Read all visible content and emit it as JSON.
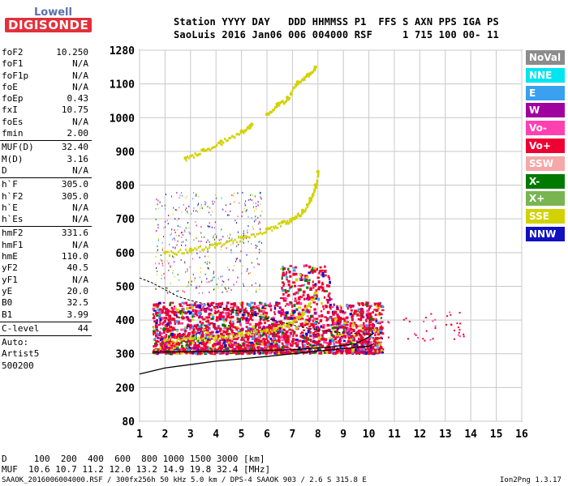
{
  "logo": {
    "line1": "Lowell",
    "line2": "DIGISONDE"
  },
  "header": {
    "line1": "Station YYYY DAY   DDD HHMMSS P1  FFS S AXN PPS IGA PS",
    "line2": "SaoLuis 2016 Jan06 006 004000 RSF     1 715 100 00- 11"
  },
  "params": {
    "group1": [
      {
        "k": "foF2",
        "v": "10.250"
      },
      {
        "k": "foF1",
        "v": "N/A"
      },
      {
        "k": "foF1p",
        "v": "N/A"
      },
      {
        "k": "foE",
        "v": "N/A"
      },
      {
        "k": "foEp",
        "v": "0.43"
      },
      {
        "k": "fxI",
        "v": "10.75"
      },
      {
        "k": "foEs",
        "v": "N/A"
      },
      {
        "k": "fmin",
        "v": "2.00"
      }
    ],
    "group2": [
      {
        "k": "MUF(D)",
        "v": "32.40"
      },
      {
        "k": "M(D)",
        "v": "3.16"
      },
      {
        "k": "D",
        "v": "N/A"
      }
    ],
    "group3": [
      {
        "k": "h`F",
        "v": "305.0"
      },
      {
        "k": "h`F2",
        "v": "305.0"
      },
      {
        "k": "h`E",
        "v": "N/A"
      },
      {
        "k": "h`Es",
        "v": "N/A"
      }
    ],
    "group4": [
      {
        "k": "hmF2",
        "v": "331.6"
      },
      {
        "k": "hmF1",
        "v": "N/A"
      },
      {
        "k": "hmE",
        "v": "110.0"
      },
      {
        "k": "yF2",
        "v": "40.5"
      },
      {
        "k": "yF1",
        "v": "N/A"
      },
      {
        "k": "yE",
        "v": "20.0"
      },
      {
        "k": "B0",
        "v": "32.5"
      },
      {
        "k": "B1",
        "v": "3.99"
      }
    ],
    "group5": [
      {
        "k": "C-level",
        "v": "44"
      }
    ],
    "group6": [
      {
        "k": "Auto:",
        "v": ""
      },
      {
        "k": "Artist5",
        "v": ""
      },
      {
        "k": "500200",
        "v": ""
      }
    ]
  },
  "legend": [
    {
      "label": "NoVal",
      "color": "#8c8c8c"
    },
    {
      "label": "NNE",
      "color": "#00e5f0"
    },
    {
      "label": "E",
      "color": "#3aa0f0"
    },
    {
      "label": "W",
      "color": "#a0009e"
    },
    {
      "label": "Vo-",
      "color": "#ff40b0"
    },
    {
      "label": "Vo+",
      "color": "#ee0033"
    },
    {
      "label": "SSW",
      "color": "#f4a8a8"
    },
    {
      "label": "X-",
      "color": "#007a00"
    },
    {
      "label": "X+",
      "color": "#78b450"
    },
    {
      "label": "SSE",
      "color": "#d2d200"
    },
    {
      "label": "NNW",
      "color": "#1010c0"
    }
  ],
  "bottom": {
    "d_line": "D     100  200  400  600  800 1000 1500 3000 [km]",
    "muf_line": "MUF  10.6 10.7 11.2 12.0 13.2 14.9 19.8 32.4 [MHz]"
  },
  "footer": "SAAOK_2016006004000.RSF / 300fx256h 50 kHz 5.0 km / DPS-4 SAAOK 903 / 2.6 S 315.8 E",
  "version": "Ion2Png 1.3.17",
  "chart_data": {
    "type": "scatter",
    "x_ticks": [
      1,
      2,
      3,
      4,
      5,
      6,
      7,
      8,
      9,
      10,
      11,
      12,
      13,
      14,
      15,
      16
    ],
    "y_ticks": [
      80,
      200,
      300,
      400,
      500,
      600,
      700,
      800,
      900,
      1000,
      1100,
      1280
    ],
    "xlim": [
      1,
      16
    ],
    "grid": true,
    "series": [
      {
        "color": "#d2d200",
        "points": [
          [
            2.0,
            600
          ],
          [
            3.0,
            610
          ],
          [
            4.0,
            625
          ],
          [
            5.0,
            645
          ],
          [
            6.0,
            670
          ],
          [
            6.6,
            690
          ],
          [
            7.0,
            700
          ],
          [
            7.4,
            725
          ],
          [
            7.7,
            760
          ],
          [
            7.9,
            800
          ],
          [
            8.0,
            840
          ]
        ]
      },
      {
        "color": "#d2d200",
        "points": [
          [
            2.8,
            880
          ],
          [
            3.5,
            905
          ],
          [
            4.2,
            930
          ],
          [
            5.0,
            960
          ],
          [
            5.4,
            980
          ]
        ]
      },
      {
        "color": "#d2d200",
        "points": [
          [
            6.0,
            1010
          ],
          [
            6.4,
            1040
          ],
          [
            6.8,
            1060
          ],
          [
            7.2,
            1110
          ],
          [
            7.6,
            1150
          ],
          [
            7.9,
            1190
          ]
        ]
      },
      {
        "color": "#d2d200",
        "points": [
          [
            2.0,
            340
          ],
          [
            3.0,
            345
          ],
          [
            4.0,
            350
          ],
          [
            5.0,
            360
          ],
          [
            6.0,
            370
          ],
          [
            6.8,
            390
          ],
          [
            7.4,
            420
          ],
          [
            7.9,
            480
          ]
        ]
      },
      {
        "color": "#000000",
        "points": [
          [
            1.0,
            240
          ],
          [
            2.0,
            258
          ],
          [
            3.0,
            268
          ],
          [
            4.0,
            278
          ],
          [
            5.0,
            285
          ],
          [
            6.0,
            292
          ],
          [
            7.0,
            300
          ],
          [
            8.0,
            308
          ],
          [
            9.0,
            315
          ],
          [
            10.0,
            322
          ],
          [
            10.2,
            330
          ]
        ]
      },
      {
        "color": "#000000",
        "points": [
          [
            1.5,
            305
          ],
          [
            3.0,
            306
          ],
          [
            5.0,
            308
          ],
          [
            7.0,
            312
          ],
          [
            8.5,
            320
          ],
          [
            9.5,
            330
          ],
          [
            10.0,
            350
          ],
          [
            10.2,
            362
          ]
        ]
      },
      {
        "color": "#000000",
        "points": [
          [
            1.0,
            525
          ],
          [
            1.5,
            510
          ],
          [
            2.0,
            490
          ],
          [
            2.5,
            470
          ],
          [
            3.0,
            458
          ],
          [
            4.0,
            440
          ],
          [
            5.0,
            425
          ],
          [
            6.0,
            405
          ],
          [
            7.0,
            385
          ],
          [
            8.0,
            370
          ],
          [
            9.0,
            362
          ],
          [
            10.0,
            358
          ],
          [
            10.2,
            356
          ]
        ]
      }
    ]
  }
}
